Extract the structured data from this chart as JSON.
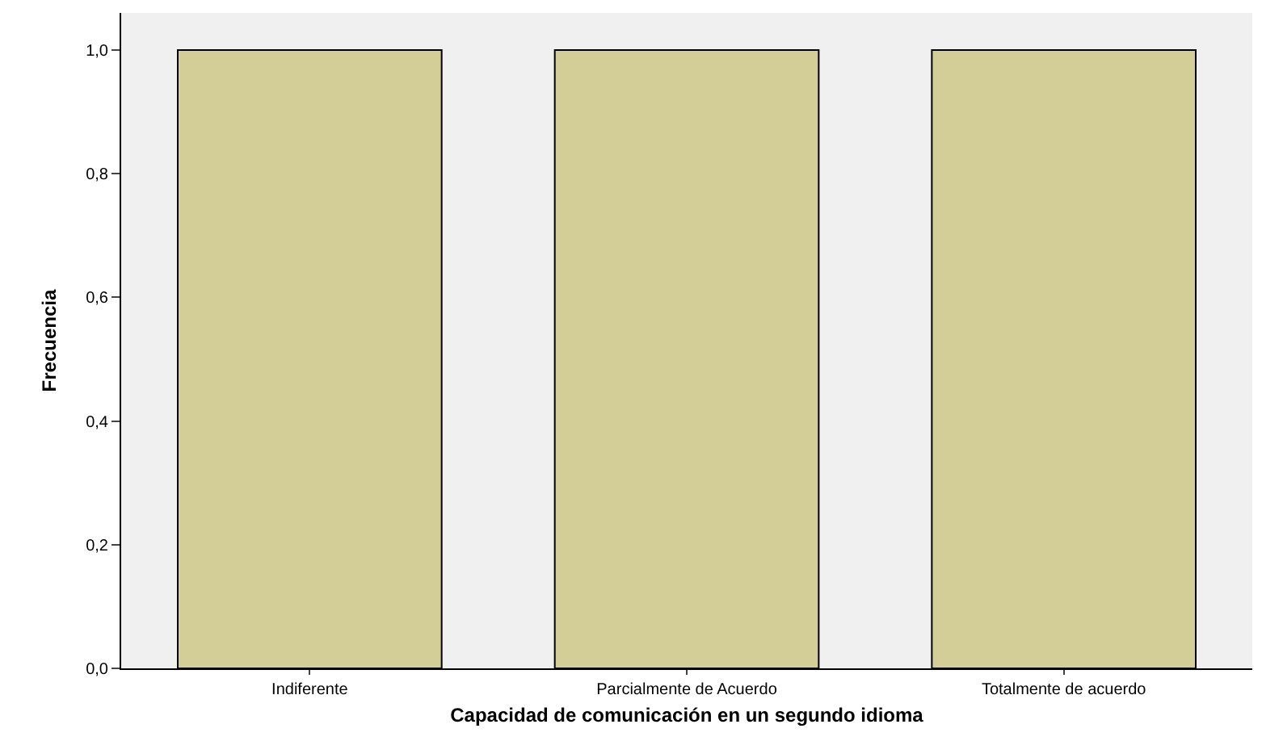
{
  "chart_data": {
    "type": "bar",
    "xlabel": "Capacidad de comunicación en un segundo idioma",
    "ylabel": "Frecuencia",
    "categories": [
      "Indiferente",
      "Parcialmente de Acuerdo",
      "Totalmente de acuerdo"
    ],
    "values": [
      1.0,
      1.0,
      1.0
    ],
    "color": "#d3ce97",
    "ylim": [
      0,
      1.06
    ],
    "yticks": [
      {
        "value": 0,
        "label": "0,0"
      },
      {
        "value": 0.2,
        "label": "0,2"
      },
      {
        "value": 0.4,
        "label": "0,4"
      },
      {
        "value": 0.6,
        "label": "0,6"
      },
      {
        "value": 0.8,
        "label": "0,8"
      },
      {
        "value": 1.0,
        "label": "1,0"
      }
    ],
    "grid": false,
    "legend": false
  }
}
